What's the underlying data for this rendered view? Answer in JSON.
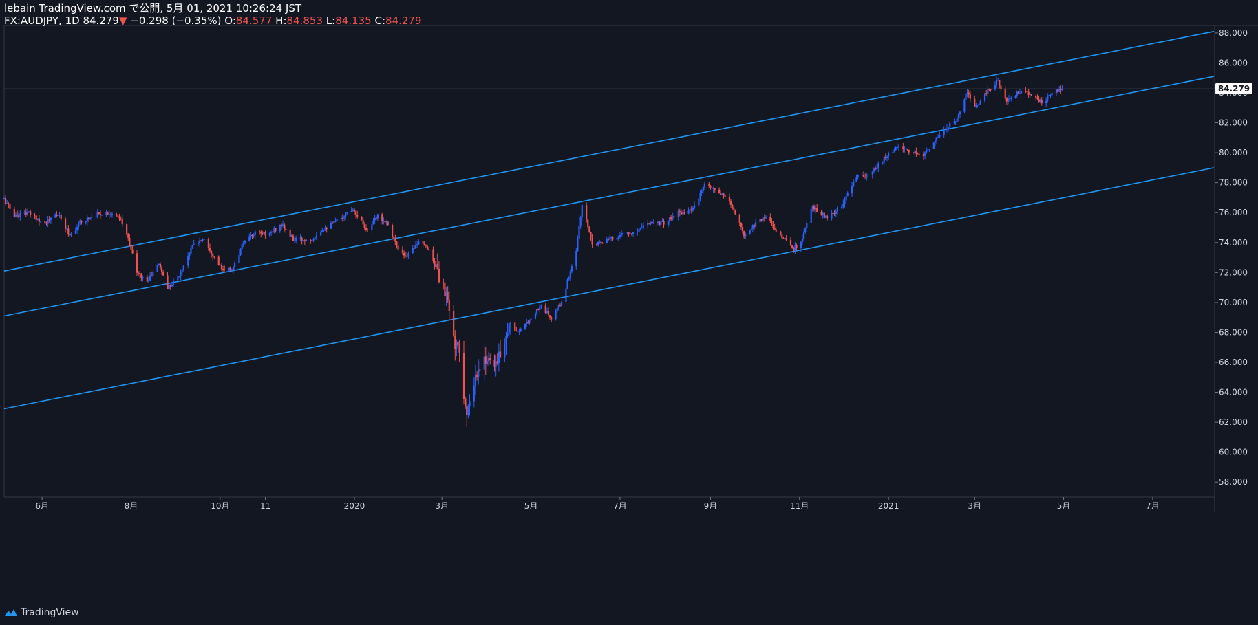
{
  "header": {
    "line1": "lebain TradingView.com で公開, 5月 01, 2021 10:26:24 JST",
    "symbol": "FX:AUDJPY, 1D",
    "last": "84.279",
    "down_arrow": "▼",
    "change": "−0.298 (−0.35%)",
    "o_label": "O:",
    "o_value": "84.577",
    "h_label": "H:",
    "h_value": "84.853",
    "l_label": "L:",
    "l_value": "84.135",
    "c_label": "C:",
    "c_value": "84.279"
  },
  "footer": {
    "brand": "TradingView"
  },
  "colors": {
    "background": "#131722",
    "up": "#2962ff",
    "down": "#ef5350",
    "channel": "#2196f3",
    "axis_text": "#d1d4dc",
    "price_tag": "#ffffff"
  },
  "chart_data": {
    "type": "candlestick",
    "symbol": "FX:AUDJPY",
    "interval": "1D",
    "ylim": [
      57,
      88.5
    ],
    "y_ticks": [
      58,
      60,
      62,
      64,
      66,
      68,
      70,
      72,
      74,
      76,
      78,
      80,
      82,
      84,
      86,
      88
    ],
    "y_tick_labels": [
      "58.000",
      "60.000",
      "62.000",
      "64.000",
      "66.000",
      "68.000",
      "70.000",
      "72.000",
      "74.000",
      "76.000",
      "78.000",
      "80.000",
      "82.000",
      "84.000",
      "86.000",
      "88.000"
    ],
    "x_range": [
      "2019-05-06",
      "2021-08-12"
    ],
    "x_ticks": [
      {
        "date": "2019-06-01",
        "label": "6月"
      },
      {
        "date": "2019-08-01",
        "label": "8月"
      },
      {
        "date": "2019-10-01",
        "label": "10月"
      },
      {
        "date": "2019-11-01",
        "label": "11"
      },
      {
        "date": "2020-01-01",
        "label": "2020"
      },
      {
        "date": "2020-03-01",
        "label": "3月"
      },
      {
        "date": "2020-05-01",
        "label": "5月"
      },
      {
        "date": "2020-07-01",
        "label": "7月"
      },
      {
        "date": "2020-09-01",
        "label": "9月"
      },
      {
        "date": "2020-11-01",
        "label": "11月"
      },
      {
        "date": "2021-01-01",
        "label": "2021"
      },
      {
        "date": "2021-03-01",
        "label": "3月"
      },
      {
        "date": "2021-05-01",
        "label": "5月"
      },
      {
        "date": "2021-07-01",
        "label": "7月"
      }
    ],
    "last_price": 84.279,
    "last_price_label": "84.279",
    "close_path": [
      [
        "2019-05-06",
        76.9
      ],
      [
        "2019-05-13",
        75.8
      ],
      [
        "2019-05-22",
        76.0
      ],
      [
        "2019-06-03",
        75.3
      ],
      [
        "2019-06-12",
        75.9
      ],
      [
        "2019-06-20",
        74.5
      ],
      [
        "2019-06-28",
        75.4
      ],
      [
        "2019-07-08",
        75.9
      ],
      [
        "2019-07-18",
        76.0
      ],
      [
        "2019-07-25",
        75.5
      ],
      [
        "2019-07-31",
        74.0
      ],
      [
        "2019-08-05",
        72.0
      ],
      [
        "2019-08-12",
        71.4
      ],
      [
        "2019-08-20",
        72.6
      ],
      [
        "2019-08-26",
        71.0
      ],
      [
        "2019-09-03",
        71.8
      ],
      [
        "2019-09-12",
        73.8
      ],
      [
        "2019-09-20",
        74.3
      ],
      [
        "2019-09-27",
        73.0
      ],
      [
        "2019-10-03",
        72.1
      ],
      [
        "2019-10-10",
        72.3
      ],
      [
        "2019-10-17",
        74.0
      ],
      [
        "2019-10-25",
        74.6
      ],
      [
        "2019-11-04",
        74.6
      ],
      [
        "2019-11-12",
        75.2
      ],
      [
        "2019-11-20",
        74.2
      ],
      [
        "2019-12-02",
        74.2
      ],
      [
        "2019-12-10",
        74.9
      ],
      [
        "2019-12-18",
        75.3
      ],
      [
        "2019-12-31",
        76.3
      ],
      [
        "2020-01-10",
        74.8
      ],
      [
        "2020-01-17",
        75.8
      ],
      [
        "2020-01-24",
        75.3
      ],
      [
        "2020-01-31",
        73.5
      ],
      [
        "2020-02-05",
        73.0
      ],
      [
        "2020-02-13",
        74.0
      ],
      [
        "2020-02-21",
        73.6
      ],
      [
        "2020-02-28",
        71.7
      ],
      [
        "2020-03-05",
        70.0
      ],
      [
        "2020-03-09",
        67.6
      ],
      [
        "2020-03-13",
        66.5
      ],
      [
        "2020-03-18",
        62.3
      ],
      [
        "2020-03-24",
        64.8
      ],
      [
        "2020-03-31",
        66.3
      ],
      [
        "2020-04-08",
        66.0
      ],
      [
        "2020-04-16",
        68.5
      ],
      [
        "2020-04-23",
        68.0
      ],
      [
        "2020-05-01",
        69.0
      ],
      [
        "2020-05-08",
        69.8
      ],
      [
        "2020-05-15",
        68.9
      ],
      [
        "2020-05-22",
        70.0
      ],
      [
        "2020-06-01",
        73.5
      ],
      [
        "2020-06-05",
        76.5
      ],
      [
        "2020-06-12",
        74.0
      ],
      [
        "2020-06-19",
        74.0
      ],
      [
        "2020-06-26",
        74.3
      ],
      [
        "2020-07-03",
        74.6
      ],
      [
        "2020-07-10",
        74.6
      ],
      [
        "2020-07-20",
        75.4
      ],
      [
        "2020-07-31",
        75.3
      ],
      [
        "2020-08-10",
        76.0
      ],
      [
        "2020-08-20",
        76.2
      ],
      [
        "2020-08-28",
        77.8
      ],
      [
        "2020-09-04",
        77.5
      ],
      [
        "2020-09-14",
        76.8
      ],
      [
        "2020-09-24",
        74.5
      ],
      [
        "2020-10-02",
        75.3
      ],
      [
        "2020-10-09",
        75.8
      ],
      [
        "2020-10-16",
        74.8
      ],
      [
        "2020-10-28",
        73.6
      ],
      [
        "2020-11-02",
        74.0
      ],
      [
        "2020-11-10",
        76.4
      ],
      [
        "2020-11-20",
        75.6
      ],
      [
        "2020-11-30",
        76.4
      ],
      [
        "2020-12-10",
        78.4
      ],
      [
        "2020-12-18",
        78.4
      ],
      [
        "2020-12-31",
        79.8
      ],
      [
        "2021-01-08",
        80.5
      ],
      [
        "2021-01-15",
        80.0
      ],
      [
        "2021-01-25",
        79.9
      ],
      [
        "2021-02-05",
        81.2
      ],
      [
        "2021-02-16",
        82.2
      ],
      [
        "2021-02-24",
        84.0
      ],
      [
        "2021-03-01",
        83.0
      ],
      [
        "2021-03-09",
        84.0
      ],
      [
        "2021-03-17",
        84.8
      ],
      [
        "2021-03-23",
        83.5
      ],
      [
        "2021-03-31",
        84.0
      ],
      [
        "2021-04-08",
        84.0
      ],
      [
        "2021-04-16",
        83.3
      ],
      [
        "2021-04-23",
        84.0
      ],
      [
        "2021-04-30",
        84.279
      ]
    ],
    "channel_lines": [
      {
        "name": "upper",
        "x": [
          "2019-05-06",
          "2021-08-12"
        ],
        "y": [
          72.1,
          88.1
        ]
      },
      {
        "name": "middle",
        "x": [
          "2019-05-06",
          "2021-08-12"
        ],
        "y": [
          69.1,
          85.1
        ]
      },
      {
        "name": "lower",
        "x": [
          "2019-05-06",
          "2021-08-12"
        ],
        "y": [
          62.9,
          79.0
        ]
      }
    ]
  }
}
